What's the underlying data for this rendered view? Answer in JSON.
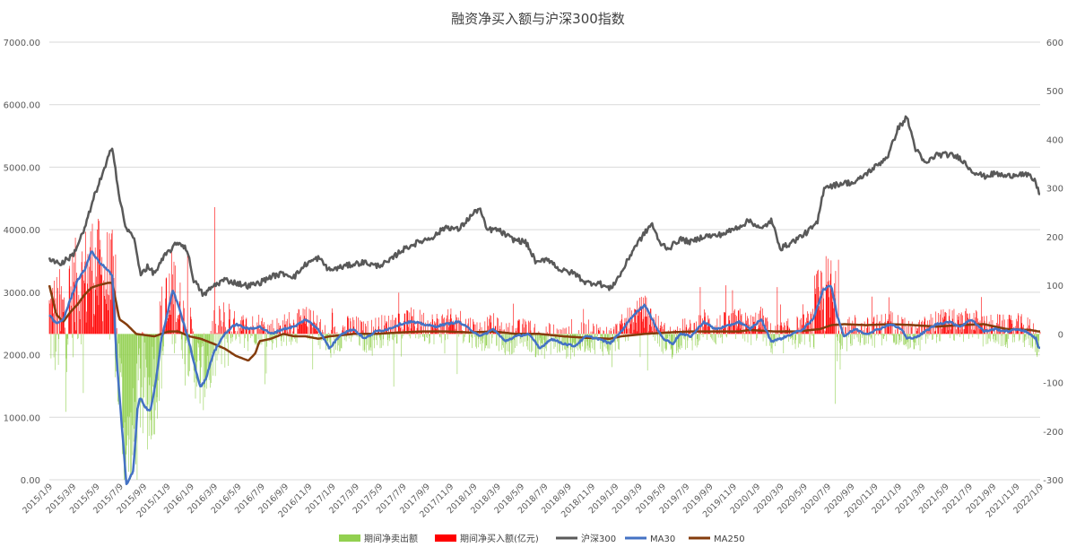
{
  "chart_data": {
    "type": "combo-bar-line",
    "title": "融资净买入额与沪深300指数",
    "left_axis": {
      "ylim": [
        0,
        7000
      ],
      "ticks": [
        "0.00",
        "1000.00",
        "2000.00",
        "3000.00",
        "4000.00",
        "5000.00",
        "6000.00",
        "7000.00"
      ]
    },
    "right_axis": {
      "ylim": [
        -300,
        600
      ],
      "ticks": [
        "-300",
        "-200",
        "-100",
        "0",
        "100",
        "200",
        "300",
        "400",
        "500",
        "600"
      ]
    },
    "grid": true,
    "x_ticks": [
      "2015/1/9",
      "2015/3/9",
      "2015/5/9",
      "2015/7/9",
      "2015/9/9",
      "2015/11/9",
      "2016/1/9",
      "2016/3/9",
      "2016/5/9",
      "2016/7/9",
      "2016/9/9",
      "2016/11/9",
      "2017/1/9",
      "2017/3/9",
      "2017/5/9",
      "2017/7/9",
      "2017/9/9",
      "2017/11/9",
      "2018/1/9",
      "2018/3/9",
      "2018/5/9",
      "2018/7/9",
      "2018/9/9",
      "2018/11/9",
      "2019/1/9",
      "2019/3/9",
      "2019/5/9",
      "2019/7/9",
      "2019/9/9",
      "2019/11/9",
      "2020/1/9",
      "2020/3/9",
      "2020/5/9",
      "2020/7/9",
      "2020/9/9",
      "2020/11/9",
      "2021/1/9",
      "2021/3/9",
      "2021/5/9",
      "2021/7/9",
      "2021/9/9",
      "2021/11/9",
      "2022/1/9"
    ],
    "legend_position": "bottom",
    "series": [
      {
        "name": "期间净卖出额",
        "type": "bar",
        "axis": "right",
        "color": "#92d050"
      },
      {
        "name": "期间净买入额(亿元)",
        "type": "bar",
        "axis": "right",
        "color": "#ff0000"
      },
      {
        "name": "沪深300",
        "type": "line",
        "axis": "left",
        "color": "#595959",
        "anchors": [
          [
            2015.0,
            3550
          ],
          [
            2015.08,
            3450
          ],
          [
            2015.17,
            3600
          ],
          [
            2015.25,
            4000
          ],
          [
            2015.33,
            4600
          ],
          [
            2015.4,
            5000
          ],
          [
            2015.45,
            5350
          ],
          [
            2015.5,
            4500
          ],
          [
            2015.55,
            4000
          ],
          [
            2015.6,
            3900
          ],
          [
            2015.65,
            3300
          ],
          [
            2015.7,
            3400
          ],
          [
            2015.75,
            3300
          ],
          [
            2015.83,
            3600
          ],
          [
            2015.92,
            3800
          ],
          [
            2015.98,
            3700
          ],
          [
            2016.03,
            3200
          ],
          [
            2016.1,
            2950
          ],
          [
            2016.17,
            3100
          ],
          [
            2016.25,
            3200
          ],
          [
            2016.33,
            3150
          ],
          [
            2016.42,
            3100
          ],
          [
            2016.5,
            3150
          ],
          [
            2016.58,
            3250
          ],
          [
            2016.67,
            3300
          ],
          [
            2016.75,
            3250
          ],
          [
            2016.83,
            3450
          ],
          [
            2016.92,
            3550
          ],
          [
            2017.0,
            3350
          ],
          [
            2017.08,
            3400
          ],
          [
            2017.17,
            3450
          ],
          [
            2017.25,
            3480
          ],
          [
            2017.33,
            3420
          ],
          [
            2017.42,
            3480
          ],
          [
            2017.5,
            3650
          ],
          [
            2017.58,
            3750
          ],
          [
            2017.67,
            3830
          ],
          [
            2017.75,
            3900
          ],
          [
            2017.83,
            4050
          ],
          [
            2017.92,
            4000
          ],
          [
            2018.0,
            4200
          ],
          [
            2018.07,
            4350
          ],
          [
            2018.12,
            4000
          ],
          [
            2018.2,
            4000
          ],
          [
            2018.3,
            3850
          ],
          [
            2018.4,
            3800
          ],
          [
            2018.48,
            3450
          ],
          [
            2018.55,
            3550
          ],
          [
            2018.65,
            3350
          ],
          [
            2018.75,
            3300
          ],
          [
            2018.83,
            3150
          ],
          [
            2018.92,
            3150
          ],
          [
            2019.0,
            3050
          ],
          [
            2019.08,
            3300
          ],
          [
            2019.17,
            3700
          ],
          [
            2019.25,
            3950
          ],
          [
            2019.3,
            4100
          ],
          [
            2019.35,
            3800
          ],
          [
            2019.42,
            3700
          ],
          [
            2019.5,
            3850
          ],
          [
            2019.58,
            3800
          ],
          [
            2019.67,
            3900
          ],
          [
            2019.75,
            3900
          ],
          [
            2019.83,
            3950
          ],
          [
            2019.92,
            4050
          ],
          [
            2020.0,
            4150
          ],
          [
            2020.08,
            4000
          ],
          [
            2020.15,
            4150
          ],
          [
            2020.22,
            3700
          ],
          [
            2020.3,
            3800
          ],
          [
            2020.4,
            3950
          ],
          [
            2020.48,
            4100
          ],
          [
            2020.53,
            4700
          ],
          [
            2020.58,
            4700
          ],
          [
            2020.67,
            4750
          ],
          [
            2020.75,
            4750
          ],
          [
            2020.83,
            4900
          ],
          [
            2020.92,
            5050
          ],
          [
            2020.99,
            5200
          ],
          [
            2021.05,
            5600
          ],
          [
            2021.12,
            5800
          ],
          [
            2021.18,
            5300
          ],
          [
            2021.25,
            5050
          ],
          [
            2021.33,
            5200
          ],
          [
            2021.42,
            5200
          ],
          [
            2021.5,
            5150
          ],
          [
            2021.58,
            4950
          ],
          [
            2021.67,
            4850
          ],
          [
            2021.75,
            4900
          ],
          [
            2021.83,
            4850
          ],
          [
            2021.92,
            4900
          ],
          [
            2022.0,
            4850
          ],
          [
            2022.04,
            4750
          ],
          [
            2022.06,
            4600
          ]
        ]
      },
      {
        "name": "MA30",
        "type": "line",
        "axis": "right",
        "color": "#4472c4",
        "anchors": [
          [
            2015.0,
            40
          ],
          [
            2015.05,
            20
          ],
          [
            2015.1,
            30
          ],
          [
            2015.15,
            70
          ],
          [
            2015.2,
            110
          ],
          [
            2015.25,
            130
          ],
          [
            2015.3,
            170
          ],
          [
            2015.35,
            150
          ],
          [
            2015.42,
            130
          ],
          [
            2015.45,
            120
          ],
          [
            2015.48,
            -50
          ],
          [
            2015.52,
            -200
          ],
          [
            2015.55,
            -310
          ],
          [
            2015.6,
            -280
          ],
          [
            2015.63,
            -150
          ],
          [
            2015.65,
            -130
          ],
          [
            2015.68,
            -150
          ],
          [
            2015.72,
            -160
          ],
          [
            2015.76,
            -100
          ],
          [
            2015.8,
            -10
          ],
          [
            2015.85,
            50
          ],
          [
            2015.88,
            90
          ],
          [
            2015.92,
            60
          ],
          [
            2016.0,
            -20
          ],
          [
            2016.05,
            -80
          ],
          [
            2016.08,
            -110
          ],
          [
            2016.12,
            -90
          ],
          [
            2016.17,
            -40
          ],
          [
            2016.25,
            0
          ],
          [
            2016.33,
            20
          ],
          [
            2016.42,
            10
          ],
          [
            2016.5,
            15
          ],
          [
            2016.58,
            0
          ],
          [
            2016.67,
            10
          ],
          [
            2016.75,
            15
          ],
          [
            2016.83,
            30
          ],
          [
            2016.92,
            10
          ],
          [
            2017.0,
            -30
          ],
          [
            2017.08,
            0
          ],
          [
            2017.17,
            10
          ],
          [
            2017.25,
            -10
          ],
          [
            2017.33,
            5
          ],
          [
            2017.42,
            10
          ],
          [
            2017.5,
            20
          ],
          [
            2017.58,
            25
          ],
          [
            2017.67,
            20
          ],
          [
            2017.75,
            15
          ],
          [
            2017.83,
            20
          ],
          [
            2017.92,
            25
          ],
          [
            2018.0,
            10
          ],
          [
            2018.08,
            -5
          ],
          [
            2018.17,
            10
          ],
          [
            2018.25,
            -15
          ],
          [
            2018.33,
            -5
          ],
          [
            2018.42,
            0
          ],
          [
            2018.5,
            -30
          ],
          [
            2018.58,
            -10
          ],
          [
            2018.67,
            -20
          ],
          [
            2018.75,
            -25
          ],
          [
            2018.83,
            -5
          ],
          [
            2018.92,
            -10
          ],
          [
            2019.0,
            -20
          ],
          [
            2019.08,
            5
          ],
          [
            2019.17,
            40
          ],
          [
            2019.25,
            60
          ],
          [
            2019.3,
            30
          ],
          [
            2019.38,
            -10
          ],
          [
            2019.45,
            -20
          ],
          [
            2019.5,
            0
          ],
          [
            2019.58,
            -5
          ],
          [
            2019.67,
            25
          ],
          [
            2019.75,
            10
          ],
          [
            2019.83,
            15
          ],
          [
            2019.92,
            25
          ],
          [
            2020.0,
            10
          ],
          [
            2020.08,
            30
          ],
          [
            2020.15,
            -15
          ],
          [
            2020.22,
            -10
          ],
          [
            2020.3,
            0
          ],
          [
            2020.38,
            10
          ],
          [
            2020.45,
            30
          ],
          [
            2020.52,
            90
          ],
          [
            2020.58,
            100
          ],
          [
            2020.62,
            40
          ],
          [
            2020.67,
            -5
          ],
          [
            2020.75,
            10
          ],
          [
            2020.83,
            0
          ],
          [
            2020.92,
            10
          ],
          [
            2021.0,
            20
          ],
          [
            2021.08,
            10
          ],
          [
            2021.12,
            -10
          ],
          [
            2021.2,
            -5
          ],
          [
            2021.25,
            5
          ],
          [
            2021.33,
            20
          ],
          [
            2021.42,
            25
          ],
          [
            2021.5,
            15
          ],
          [
            2021.58,
            30
          ],
          [
            2021.67,
            5
          ],
          [
            2021.75,
            10
          ],
          [
            2021.83,
            5
          ],
          [
            2021.92,
            10
          ],
          [
            2022.0,
            0
          ],
          [
            2022.04,
            -10
          ],
          [
            2022.06,
            -30
          ]
        ]
      },
      {
        "name": "MA250",
        "type": "line",
        "axis": "right",
        "color": "#843c0c",
        "anchors": [
          [
            2015.0,
            100
          ],
          [
            2015.05,
            40
          ],
          [
            2015.1,
            25
          ],
          [
            2015.15,
            45
          ],
          [
            2015.2,
            60
          ],
          [
            2015.25,
            80
          ],
          [
            2015.3,
            95
          ],
          [
            2015.35,
            100
          ],
          [
            2015.42,
            105
          ],
          [
            2015.45,
            105
          ],
          [
            2015.5,
            30
          ],
          [
            2015.55,
            20
          ],
          [
            2015.62,
            0
          ],
          [
            2015.75,
            -5
          ],
          [
            2015.85,
            5
          ],
          [
            2015.92,
            5
          ],
          [
            2016.0,
            -5
          ],
          [
            2016.08,
            -10
          ],
          [
            2016.17,
            -20
          ],
          [
            2016.25,
            -30
          ],
          [
            2016.33,
            -45
          ],
          [
            2016.42,
            -55
          ],
          [
            2016.47,
            -40
          ],
          [
            2016.5,
            -15
          ],
          [
            2016.58,
            -10
          ],
          [
            2016.67,
            0
          ],
          [
            2016.75,
            -5
          ],
          [
            2016.83,
            -5
          ],
          [
            2016.92,
            -10
          ],
          [
            2017.0,
            -5
          ],
          [
            2017.17,
            0
          ],
          [
            2017.33,
            0
          ],
          [
            2017.5,
            3
          ],
          [
            2017.67,
            5
          ],
          [
            2017.83,
            5
          ],
          [
            2018.0,
            3
          ],
          [
            2018.17,
            5
          ],
          [
            2018.33,
            0
          ],
          [
            2018.5,
            0
          ],
          [
            2018.67,
            -5
          ],
          [
            2018.83,
            -8
          ],
          [
            2019.0,
            -10
          ],
          [
            2019.08,
            -5
          ],
          [
            2019.25,
            0
          ],
          [
            2019.42,
            3
          ],
          [
            2019.58,
            5
          ],
          [
            2019.75,
            5
          ],
          [
            2019.92,
            5
          ],
          [
            2020.0,
            8
          ],
          [
            2020.17,
            5
          ],
          [
            2020.33,
            5
          ],
          [
            2020.5,
            10
          ],
          [
            2020.58,
            18
          ],
          [
            2020.67,
            20
          ],
          [
            2020.83,
            18
          ],
          [
            2021.0,
            20
          ],
          [
            2021.17,
            18
          ],
          [
            2021.33,
            15
          ],
          [
            2021.5,
            18
          ],
          [
            2021.67,
            20
          ],
          [
            2021.83,
            10
          ],
          [
            2022.0,
            8
          ],
          [
            2022.06,
            5
          ]
        ]
      }
    ]
  }
}
